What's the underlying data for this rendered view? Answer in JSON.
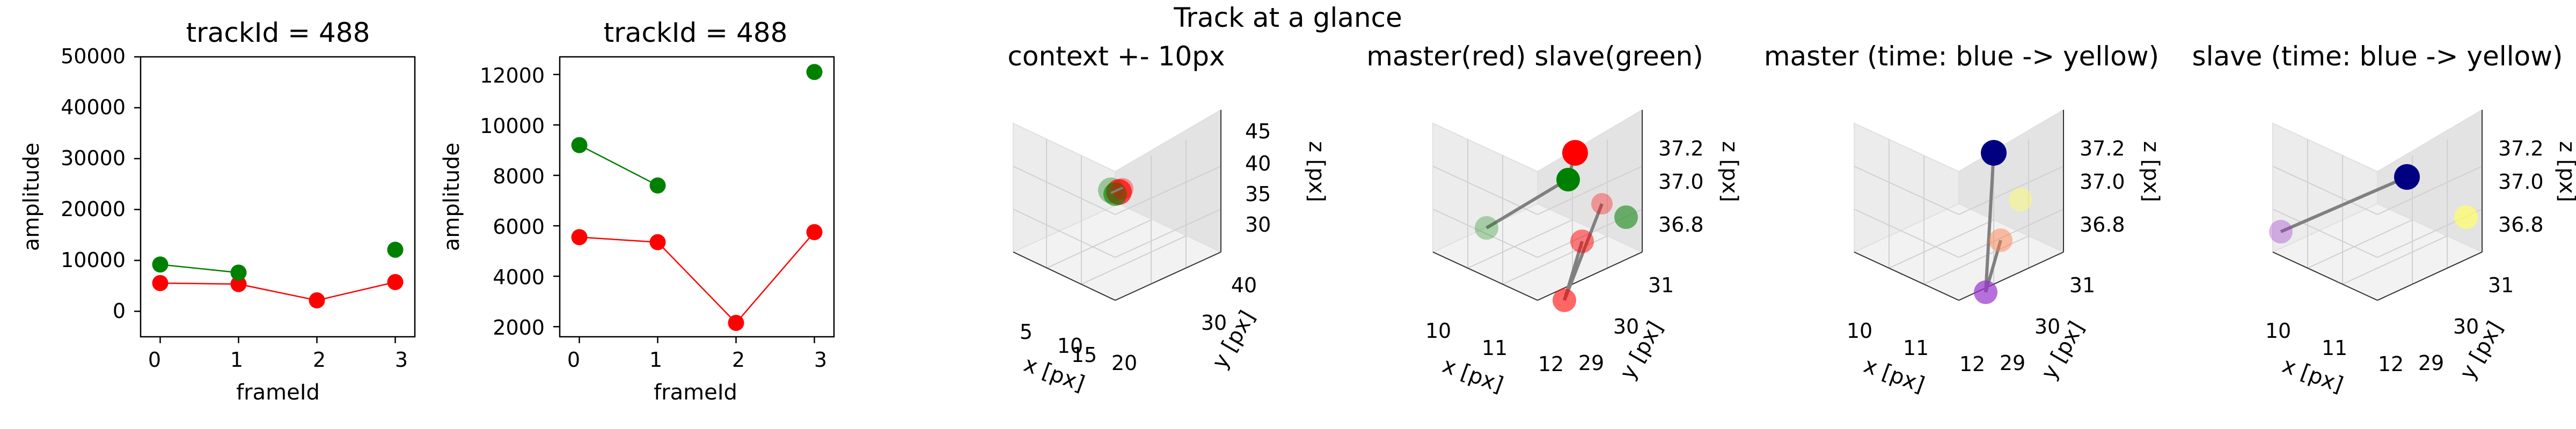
{
  "suptitle": "Track at a glance",
  "colors": {
    "master": "#ff0000",
    "slave": "#008000",
    "pane": "#f2f2f2",
    "pane_side": "#e6e6e6",
    "grid": "#d0d0d0",
    "connector": "#808080"
  },
  "chart_data": [
    {
      "type": "scatter",
      "title": "trackId = 488",
      "xlabel": "frameId",
      "ylabel": "amplitude",
      "xlim": [
        -0.25,
        3.25
      ],
      "ylim": [
        -5000,
        50000
      ],
      "xticks": [
        "0",
        "1",
        "2",
        "3"
      ],
      "yticks": [
        "0",
        "10000",
        "20000",
        "30000",
        "40000",
        "50000"
      ],
      "series": [
        {
          "color": "red",
          "lines": [
            [
              [
                0,
                5550
              ],
              [
                1,
                5350
              ],
              [
                2,
                2150
              ],
              [
                3,
                5750
              ]
            ]
          ]
        },
        {
          "color": "green",
          "lines": [
            [
              [
                0,
                9200
              ],
              [
                1,
                7600
              ]
            ]
          ],
          "points": [
            [
              3,
              12100
            ]
          ]
        }
      ]
    },
    {
      "type": "scatter",
      "title": "trackId = 488",
      "xlabel": "frameId",
      "ylabel": "amplitude",
      "xlim": [
        -0.25,
        3.25
      ],
      "ylim": [
        1600,
        12700
      ],
      "xticks": [
        "0",
        "1",
        "2",
        "3"
      ],
      "yticks": [
        "2000",
        "4000",
        "6000",
        "8000",
        "10000",
        "12000"
      ],
      "series": [
        {
          "color": "red",
          "lines": [
            [
              [
                0,
                5550
              ],
              [
                1,
                5350
              ],
              [
                2,
                2150
              ],
              [
                3,
                5750
              ]
            ]
          ]
        },
        {
          "color": "green",
          "lines": [
            [
              [
                0,
                9200
              ],
              [
                1,
                7600
              ]
            ]
          ],
          "points": [
            [
              3,
              12100
            ]
          ]
        }
      ]
    },
    {
      "type": "scatter3d",
      "title": "context +- 10px",
      "xlabel": "x [px]",
      "ylabel": "y [px]",
      "zlabel": "z [px]",
      "xticks": [
        "5",
        "10",
        "15",
        "20"
      ],
      "yticks": [
        "30",
        "40"
      ],
      "zticks": [
        "30",
        "35",
        "40",
        "45"
      ]
    },
    {
      "type": "scatter3d",
      "title": "master(red) slave(green)",
      "xlabel": "x [px]",
      "ylabel": "y [px]",
      "zlabel": "z [px]",
      "xticks": [
        "10",
        "11",
        "12"
      ],
      "yticks": [
        "29",
        "30",
        "31"
      ],
      "zticks": [
        "36.8",
        "37.0",
        "37.2"
      ]
    },
    {
      "type": "scatter3d",
      "title": "master (time: blue -> yellow)",
      "xlabel": "x [px]",
      "ylabel": "y [px]",
      "zlabel": "z [px]",
      "xticks": [
        "10",
        "11",
        "12"
      ],
      "yticks": [
        "29",
        "30",
        "31"
      ],
      "zticks": [
        "36.8",
        "37.0",
        "37.2"
      ]
    },
    {
      "type": "scatter3d",
      "title": "slave (time: blue -> yellow)",
      "xlabel": "x [px]",
      "ylabel": "y [px]",
      "zlabel": "z [px]",
      "xticks": [
        "10",
        "11",
        "12"
      ],
      "yticks": [
        "29",
        "30",
        "31"
      ],
      "zticks": [
        "36.8",
        "37.0",
        "37.2"
      ]
    }
  ]
}
